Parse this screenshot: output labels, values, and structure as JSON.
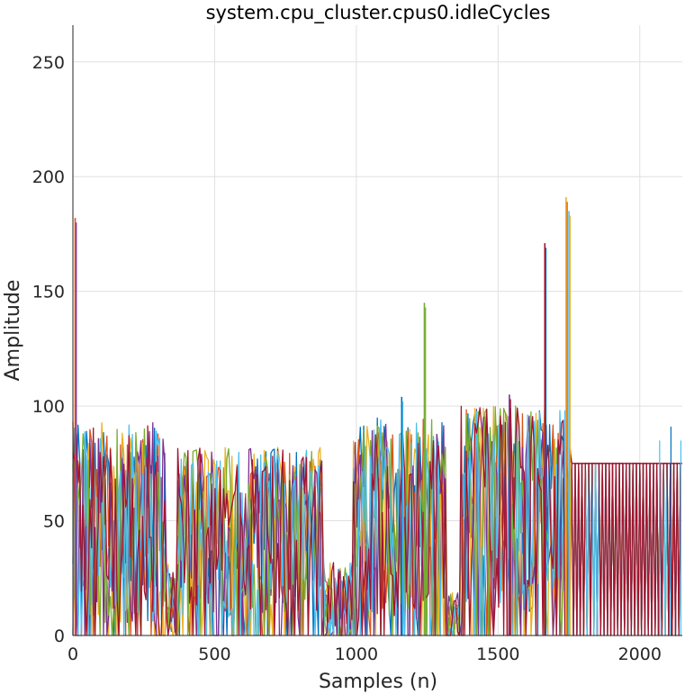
{
  "chart_data": {
    "type": "line",
    "title": "system.cpu_cluster.cpus0.idleCycles",
    "xlabel": "Samples (n)",
    "ylabel": "Amplitude",
    "xlim": [
      0,
      2150
    ],
    "ylim": [
      0,
      266
    ],
    "xticks": [
      0,
      500,
      1000,
      1500,
      2000
    ],
    "yticks": [
      0,
      50,
      100,
      150,
      200,
      250
    ],
    "xtick_labels": [
      "0",
      "500",
      "1000",
      "1500",
      "2000"
    ],
    "ytick_labels": [
      "0",
      "50",
      "100",
      "150",
      "200",
      "250"
    ],
    "grid": true,
    "legend": "none",
    "series_colors": [
      "#0072BD",
      "#D95319",
      "#EDB120",
      "#7E2F8E",
      "#77AC30",
      "#4DBEEE",
      "#A2142F"
    ],
    "segments": [
      {
        "x": [
          0,
          330
        ],
        "low": 0,
        "high": 95,
        "mid": 48
      },
      {
        "x": [
          330,
          370
        ],
        "low": 0,
        "high": 32,
        "mid": 16
      },
      {
        "x": [
          370,
          890
        ],
        "low": 0,
        "high": 82,
        "mid": 45
      },
      {
        "x": [
          890,
          990
        ],
        "low": 0,
        "high": 32,
        "mid": 10
      },
      {
        "x": [
          990,
          1320
        ],
        "low": 0,
        "high": 95,
        "mid": 50
      },
      {
        "x": [
          1320,
          1370
        ],
        "low": 0,
        "high": 20,
        "mid": 5
      },
      {
        "x": [
          1370,
          1760
        ],
        "low": 0,
        "high": 100,
        "mid": 55
      },
      {
        "x": [
          1760,
          2150
        ],
        "low": 0,
        "high": 75,
        "mid": 75
      }
    ],
    "spikes": [
      {
        "x": 8,
        "y": 182
      },
      {
        "x": 1240,
        "y": 145
      },
      {
        "x": 1160,
        "y": 104
      },
      {
        "x": 1540,
        "y": 105
      },
      {
        "x": 1665,
        "y": 171
      },
      {
        "x": 1740,
        "y": 191
      },
      {
        "x": 1750,
        "y": 185
      }
    ],
    "plateau": {
      "x": [
        1760,
        2150
      ],
      "y": 75
    },
    "plateau_bursts": [
      {
        "x": 2070,
        "y": 85
      },
      {
        "x": 2110,
        "y": 91
      },
      {
        "x": 2145,
        "y": 85
      }
    ]
  }
}
